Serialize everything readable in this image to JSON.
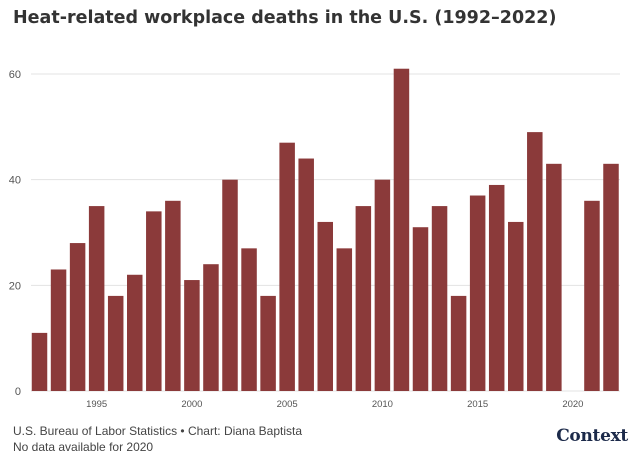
{
  "title": "Heat-related workplace deaths in the U.S. (1992–2022)",
  "footer": {
    "source": "U.S. Bureau of Labor Statistics • Chart: Diana Baptista",
    "note": "No data available for 2020"
  },
  "logo_text": "Context",
  "colors": {
    "bar": "#8b3a3a",
    "grid": "#e3e3e3",
    "axis_text": "#555555"
  },
  "chart_data": {
    "type": "bar",
    "title": "Heat-related workplace deaths in the U.S. (1992–2022)",
    "xlabel": "",
    "ylabel": "",
    "x": [
      1992,
      1993,
      1994,
      1995,
      1996,
      1997,
      1998,
      1999,
      2000,
      2001,
      2002,
      2003,
      2004,
      2005,
      2006,
      2007,
      2008,
      2009,
      2010,
      2011,
      2012,
      2013,
      2014,
      2015,
      2016,
      2017,
      2018,
      2019,
      2020,
      2021,
      2022
    ],
    "values": [
      11,
      23,
      28,
      35,
      18,
      22,
      34,
      36,
      21,
      24,
      40,
      27,
      18,
      47,
      44,
      32,
      27,
      35,
      40,
      61,
      31,
      35,
      18,
      37,
      39,
      32,
      49,
      43,
      null,
      36,
      43
    ],
    "ylim": [
      0,
      65
    ],
    "yticks": [
      0,
      20,
      40,
      60
    ],
    "xticks": [
      1995,
      2000,
      2005,
      2010,
      2015,
      2020
    ],
    "grid": true,
    "legend": "none"
  }
}
